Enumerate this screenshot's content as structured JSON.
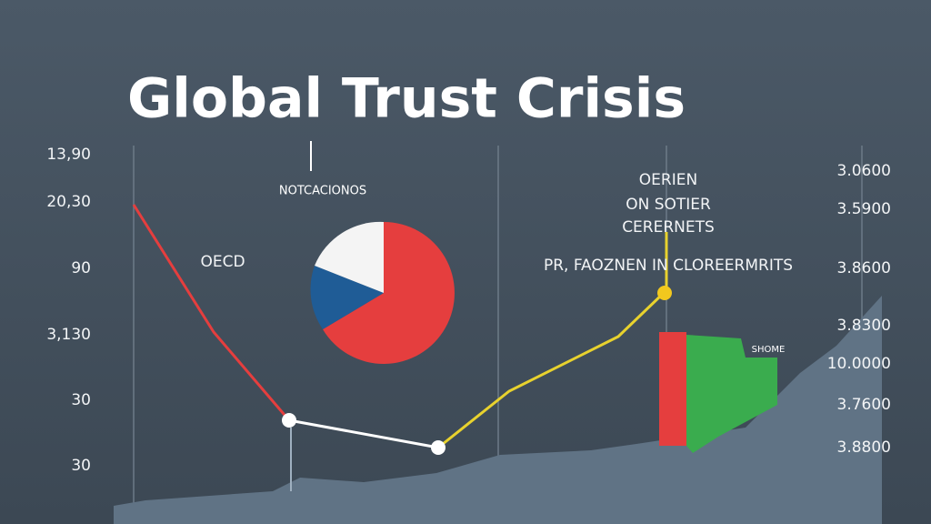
{
  "title": "Global Trust Crisis",
  "left_labels": [
    "13,90",
    "20,30",
    "90",
    "3,130",
    "30",
    "30"
  ],
  "right_labels": [
    "3.0600",
    "3.5900",
    "3.8600",
    "3.8300",
    "10.0000",
    "3.7600",
    "3.8800"
  ],
  "annotations": {
    "top_note": "NOTCACIONOS",
    "oecd": "OECD",
    "callout": [
      "OERIEN",
      "ON SOTIER",
      "CERERNETS"
    ],
    "sub_note": "PR, FAOZNEN IN CLOREERMRITS",
    "bar_note": "SHOME"
  }
}
